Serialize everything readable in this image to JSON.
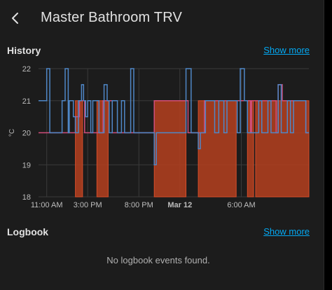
{
  "header": {
    "title": "Master Bathroom TRV",
    "back_icon": "arrow-left-icon"
  },
  "history": {
    "title": "History",
    "show_more": "Show more"
  },
  "logbook": {
    "title": "Logbook",
    "show_more": "Show more",
    "empty_text": "No logbook events found."
  },
  "colors": {
    "temperature_line": "#4f87c7",
    "target_line": "#d14e7a",
    "heating_fill": "#b5401e",
    "heating_stroke": "#d64d2a",
    "link": "#03a9f4"
  },
  "chart_data": {
    "type": "line",
    "ylabel": "°C",
    "ylim": [
      18,
      22
    ],
    "y_ticks": [
      22,
      21,
      20,
      19,
      18
    ],
    "x_range": [
      10.2,
      36.6
    ],
    "x_tick_labels": [
      {
        "x": 11,
        "label": "11:00 AM",
        "bold": false
      },
      {
        "x": 15,
        "label": "3:00 PM",
        "bold": false
      },
      {
        "x": 20,
        "label": "8:00 PM",
        "bold": false
      },
      {
        "x": 24,
        "label": "Mar 12",
        "bold": true
      },
      {
        "x": 30,
        "label": "6:00 AM",
        "bold": false
      }
    ],
    "grid": true,
    "temperature_series": [
      [
        10.2,
        21
      ],
      [
        11.0,
        21
      ],
      [
        11.0,
        22
      ],
      [
        11.3,
        22
      ],
      [
        11.3,
        20
      ],
      [
        12.5,
        20
      ],
      [
        12.5,
        21
      ],
      [
        12.8,
        21
      ],
      [
        12.8,
        22
      ],
      [
        13.1,
        22
      ],
      [
        13.1,
        20
      ],
      [
        13.2,
        20
      ],
      [
        13.2,
        21
      ],
      [
        13.6,
        21
      ],
      [
        13.6,
        20.5
      ],
      [
        13.8,
        20.5
      ],
      [
        13.8,
        20
      ],
      [
        14.1,
        20
      ],
      [
        14.1,
        21
      ],
      [
        14.4,
        21
      ],
      [
        14.4,
        21.5
      ],
      [
        14.6,
        21.5
      ],
      [
        14.6,
        21
      ],
      [
        14.8,
        21
      ],
      [
        14.8,
        20.5
      ],
      [
        15.0,
        20.5
      ],
      [
        15.0,
        21
      ],
      [
        15.3,
        21
      ],
      [
        15.3,
        20
      ],
      [
        15.5,
        20
      ],
      [
        15.5,
        21
      ],
      [
        16.1,
        21
      ],
      [
        16.1,
        20
      ],
      [
        16.6,
        20
      ],
      [
        16.6,
        21.5
      ],
      [
        16.9,
        21.5
      ],
      [
        16.9,
        21
      ],
      [
        17.1,
        21
      ],
      [
        17.1,
        20
      ],
      [
        17.4,
        20
      ],
      [
        17.4,
        21
      ],
      [
        17.6,
        21
      ],
      [
        17.6,
        21
      ],
      [
        17.9,
        21
      ],
      [
        17.9,
        20
      ],
      [
        18.3,
        20
      ],
      [
        18.3,
        21
      ],
      [
        18.6,
        21
      ],
      [
        18.6,
        20
      ],
      [
        19.2,
        20
      ],
      [
        19.2,
        22
      ],
      [
        19.5,
        22
      ],
      [
        19.5,
        20
      ],
      [
        21.5,
        20
      ],
      [
        21.5,
        19
      ],
      [
        21.7,
        19
      ],
      [
        21.7,
        20
      ],
      [
        24.6,
        20
      ],
      [
        24.6,
        22
      ],
      [
        25.1,
        22
      ],
      [
        25.1,
        20
      ],
      [
        25.8,
        20
      ],
      [
        25.8,
        19.5
      ],
      [
        26.0,
        19.5
      ],
      [
        26.0,
        20
      ],
      [
        26.5,
        20
      ],
      [
        26.5,
        21
      ],
      [
        27.4,
        21
      ],
      [
        27.4,
        20
      ],
      [
        27.8,
        20
      ],
      [
        27.8,
        21
      ],
      [
        28.3,
        21
      ],
      [
        28.3,
        20
      ],
      [
        28.6,
        20
      ],
      [
        28.6,
        21
      ],
      [
        29.6,
        21
      ],
      [
        29.6,
        20
      ],
      [
        29.9,
        20
      ],
      [
        29.9,
        22
      ],
      [
        30.3,
        22
      ],
      [
        30.3,
        21
      ],
      [
        30.6,
        21
      ],
      [
        30.6,
        20
      ],
      [
        31.7,
        20
      ],
      [
        31.7,
        21
      ],
      [
        32.0,
        21
      ],
      [
        32.0,
        20
      ],
      [
        32.6,
        20
      ],
      [
        32.6,
        21
      ],
      [
        32.9,
        21
      ],
      [
        32.9,
        20
      ],
      [
        33.6,
        20
      ],
      [
        33.6,
        21.5
      ],
      [
        33.9,
        21.5
      ],
      [
        33.9,
        20
      ],
      [
        34.5,
        20
      ],
      [
        34.5,
        21
      ],
      [
        34.8,
        21
      ],
      [
        34.8,
        20
      ],
      [
        35.1,
        20
      ],
      [
        35.1,
        21
      ],
      [
        36.3,
        21
      ],
      [
        36.3,
        20
      ],
      [
        36.6,
        20
      ]
    ],
    "target_series": [
      [
        10.2,
        20
      ],
      [
        13.8,
        20
      ],
      [
        13.8,
        20.5
      ],
      [
        14.2,
        20.5
      ],
      [
        14.2,
        21
      ],
      [
        14.7,
        21
      ],
      [
        14.7,
        20
      ],
      [
        16.5,
        20
      ],
      [
        16.5,
        21
      ],
      [
        17.4,
        21
      ],
      [
        17.4,
        20
      ],
      [
        21.5,
        20
      ],
      [
        21.5,
        21
      ],
      [
        24.8,
        21
      ],
      [
        24.8,
        20
      ],
      [
        26.4,
        20
      ],
      [
        26.4,
        21
      ],
      [
        30.9,
        21
      ],
      [
        30.9,
        20
      ],
      [
        31.0,
        20
      ],
      [
        31.0,
        21
      ],
      [
        33.4,
        21
      ],
      [
        33.4,
        20
      ],
      [
        33.6,
        20
      ],
      [
        33.6,
        21.5
      ],
      [
        34.0,
        21.5
      ],
      [
        34.0,
        21
      ],
      [
        36.3,
        21
      ],
      [
        36.3,
        20
      ],
      [
        36.6,
        20
      ]
    ],
    "heating_periods": [
      [
        13.8,
        14.5
      ],
      [
        15.9,
        17.0
      ],
      [
        21.5,
        24.6
      ],
      [
        25.8,
        29.5
      ],
      [
        30.6,
        31.2
      ],
      [
        31.4,
        36.6
      ]
    ],
    "heating_level": 21
  }
}
